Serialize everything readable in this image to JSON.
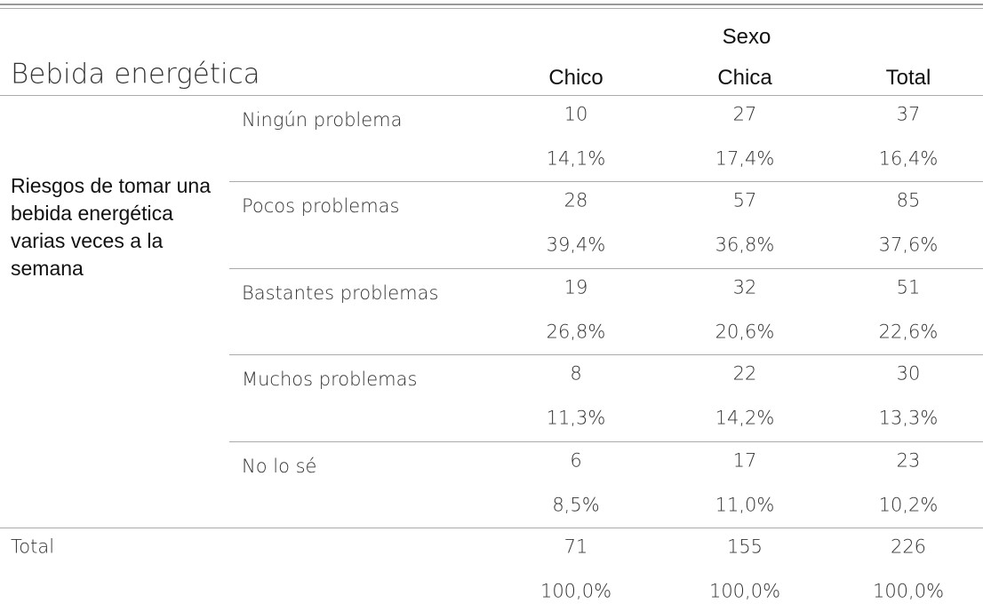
{
  "table": {
    "title": "Bebida energética",
    "group_header": "Sexo",
    "columns": [
      "Chico",
      "Chica",
      "Total"
    ],
    "row_group_label": "Riesgos de tomar una bebida energética varias veces a la semana",
    "rows": [
      {
        "label": "Ningún problema",
        "counts": [
          10,
          27,
          37
        ],
        "percents": [
          "14,1%",
          "17,4%",
          "16,4%"
        ]
      },
      {
        "label": "Pocos problemas",
        "counts": [
          28,
          57,
          85
        ],
        "percents": [
          "39,4%",
          "36,8%",
          "37,6%"
        ]
      },
      {
        "label": "Bastantes problemas",
        "counts": [
          19,
          32,
          51
        ],
        "percents": [
          "26,8%",
          "20,6%",
          "22,6%"
        ]
      },
      {
        "label": "Muchos problemas",
        "counts": [
          8,
          22,
          30
        ],
        "percents": [
          "11,3%",
          "14,2%",
          "13,3%"
        ]
      },
      {
        "label": "No lo sé",
        "counts": [
          6,
          17,
          23
        ],
        "percents": [
          "8,5%",
          "11,0%",
          "10,2%"
        ]
      }
    ],
    "total": {
      "label": "Total",
      "counts": [
        71,
        155,
        226
      ],
      "percents": [
        "100,0%",
        "100,0%",
        "100,0%"
      ]
    }
  }
}
